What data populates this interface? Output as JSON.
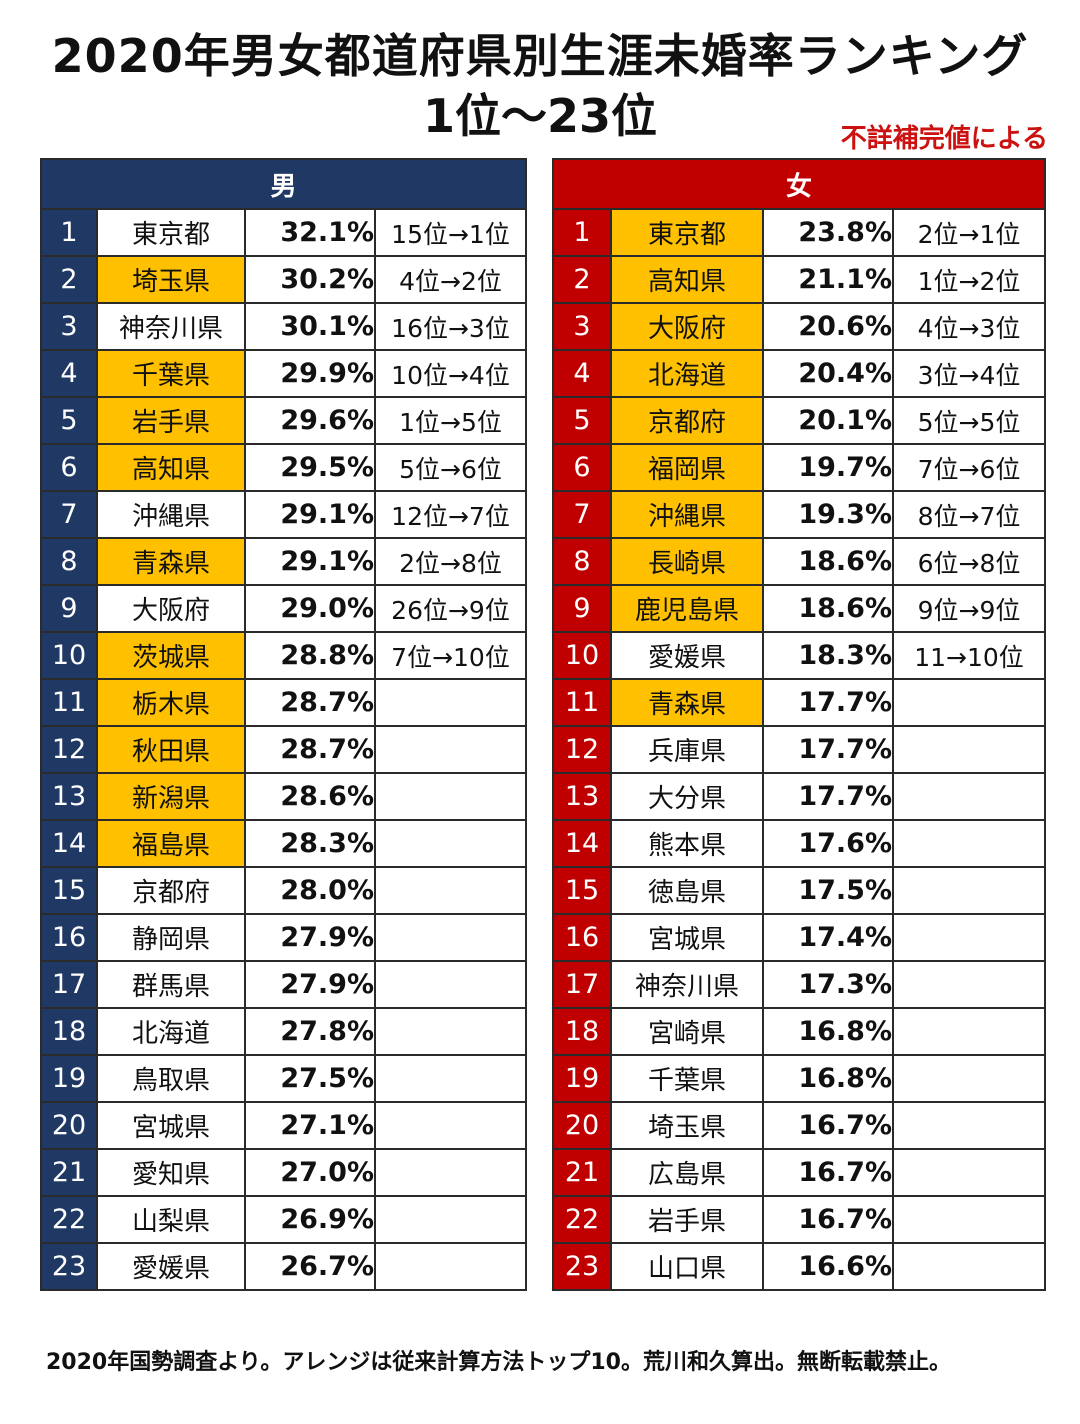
{
  "title_line1": "2020年男女都道府県別生涯未婚率ランキング",
  "title_line2": "1位〜23位",
  "note": "不詳補完値による",
  "footer": "2020年国勢調査より。アレンジは従来計算方法トップ10。荒川和久算出。無断転載禁止。",
  "colors": {
    "male_header": "#1f3864",
    "female_header": "#c00000",
    "highlight": "#ffc000",
    "note": "#cc1111"
  },
  "chart_data": [
    {
      "type": "table",
      "header": "男",
      "rows": [
        {
          "rank": "1",
          "prefecture": "東京都",
          "rate": "32.1%",
          "change": "15位→1位",
          "highlight": false
        },
        {
          "rank": "2",
          "prefecture": "埼玉県",
          "rate": "30.2%",
          "change": "4位→2位",
          "highlight": true
        },
        {
          "rank": "3",
          "prefecture": "神奈川県",
          "rate": "30.1%",
          "change": "16位→3位",
          "highlight": false
        },
        {
          "rank": "4",
          "prefecture": "千葉県",
          "rate": "29.9%",
          "change": "10位→4位",
          "highlight": true
        },
        {
          "rank": "5",
          "prefecture": "岩手県",
          "rate": "29.6%",
          "change": "1位→5位",
          "highlight": true
        },
        {
          "rank": "6",
          "prefecture": "高知県",
          "rate": "29.5%",
          "change": "5位→6位",
          "highlight": true
        },
        {
          "rank": "7",
          "prefecture": "沖縄県",
          "rate": "29.1%",
          "change": "12位→7位",
          "highlight": false
        },
        {
          "rank": "8",
          "prefecture": "青森県",
          "rate": "29.1%",
          "change": "2位→8位",
          "highlight": true
        },
        {
          "rank": "9",
          "prefecture": "大阪府",
          "rate": "29.0%",
          "change": "26位→9位",
          "highlight": false
        },
        {
          "rank": "10",
          "prefecture": "茨城県",
          "rate": "28.8%",
          "change": "7位→10位",
          "highlight": true
        },
        {
          "rank": "11",
          "prefecture": "栃木県",
          "rate": "28.7%",
          "change": "",
          "highlight": true
        },
        {
          "rank": "12",
          "prefecture": "秋田県",
          "rate": "28.7%",
          "change": "",
          "highlight": true
        },
        {
          "rank": "13",
          "prefecture": "新潟県",
          "rate": "28.6%",
          "change": "",
          "highlight": true
        },
        {
          "rank": "14",
          "prefecture": "福島県",
          "rate": "28.3%",
          "change": "",
          "highlight": true
        },
        {
          "rank": "15",
          "prefecture": "京都府",
          "rate": "28.0%",
          "change": "",
          "highlight": false
        },
        {
          "rank": "16",
          "prefecture": "静岡県",
          "rate": "27.9%",
          "change": "",
          "highlight": false
        },
        {
          "rank": "17",
          "prefecture": "群馬県",
          "rate": "27.9%",
          "change": "",
          "highlight": false
        },
        {
          "rank": "18",
          "prefecture": "北海道",
          "rate": "27.8%",
          "change": "",
          "highlight": false
        },
        {
          "rank": "19",
          "prefecture": "鳥取県",
          "rate": "27.5%",
          "change": "",
          "highlight": false
        },
        {
          "rank": "20",
          "prefecture": "宮城県",
          "rate": "27.1%",
          "change": "",
          "highlight": false
        },
        {
          "rank": "21",
          "prefecture": "愛知県",
          "rate": "27.0%",
          "change": "",
          "highlight": false
        },
        {
          "rank": "22",
          "prefecture": "山梨県",
          "rate": "26.9%",
          "change": "",
          "highlight": false
        },
        {
          "rank": "23",
          "prefecture": "愛媛県",
          "rate": "26.7%",
          "change": "",
          "highlight": false
        }
      ]
    },
    {
      "type": "table",
      "header": "女",
      "rows": [
        {
          "rank": "1",
          "prefecture": "東京都",
          "rate": "23.8%",
          "change": "2位→1位",
          "highlight": true
        },
        {
          "rank": "2",
          "prefecture": "高知県",
          "rate": "21.1%",
          "change": "1位→2位",
          "highlight": true
        },
        {
          "rank": "3",
          "prefecture": "大阪府",
          "rate": "20.6%",
          "change": "4位→3位",
          "highlight": true
        },
        {
          "rank": "4",
          "prefecture": "北海道",
          "rate": "20.4%",
          "change": "3位→4位",
          "highlight": true
        },
        {
          "rank": "5",
          "prefecture": "京都府",
          "rate": "20.1%",
          "change": "5位→5位",
          "highlight": true
        },
        {
          "rank": "6",
          "prefecture": "福岡県",
          "rate": "19.7%",
          "change": "7位→6位",
          "highlight": true
        },
        {
          "rank": "7",
          "prefecture": "沖縄県",
          "rate": "19.3%",
          "change": "8位→7位",
          "highlight": true
        },
        {
          "rank": "8",
          "prefecture": "長崎県",
          "rate": "18.6%",
          "change": "6位→8位",
          "highlight": true
        },
        {
          "rank": "9",
          "prefecture": "鹿児島県",
          "rate": "18.6%",
          "change": "9位→9位",
          "highlight": true
        },
        {
          "rank": "10",
          "prefecture": "愛媛県",
          "rate": "18.3%",
          "change": "11→10位",
          "highlight": false
        },
        {
          "rank": "11",
          "prefecture": "青森県",
          "rate": "17.7%",
          "change": "",
          "highlight": true
        },
        {
          "rank": "12",
          "prefecture": "兵庫県",
          "rate": "17.7%",
          "change": "",
          "highlight": false
        },
        {
          "rank": "13",
          "prefecture": "大分県",
          "rate": "17.7%",
          "change": "",
          "highlight": false
        },
        {
          "rank": "14",
          "prefecture": "熊本県",
          "rate": "17.6%",
          "change": "",
          "highlight": false
        },
        {
          "rank": "15",
          "prefecture": "徳島県",
          "rate": "17.5%",
          "change": "",
          "highlight": false
        },
        {
          "rank": "16",
          "prefecture": "宮城県",
          "rate": "17.4%",
          "change": "",
          "highlight": false
        },
        {
          "rank": "17",
          "prefecture": "神奈川県",
          "rate": "17.3%",
          "change": "",
          "highlight": false
        },
        {
          "rank": "18",
          "prefecture": "宮崎県",
          "rate": "16.8%",
          "change": "",
          "highlight": false
        },
        {
          "rank": "19",
          "prefecture": "千葉県",
          "rate": "16.8%",
          "change": "",
          "highlight": false
        },
        {
          "rank": "20",
          "prefecture": "埼玉県",
          "rate": "16.7%",
          "change": "",
          "highlight": false
        },
        {
          "rank": "21",
          "prefecture": "広島県",
          "rate": "16.7%",
          "change": "",
          "highlight": false
        },
        {
          "rank": "22",
          "prefecture": "岩手県",
          "rate": "16.7%",
          "change": "",
          "highlight": false
        },
        {
          "rank": "23",
          "prefecture": "山口県",
          "rate": "16.6%",
          "change": "",
          "highlight": false
        }
      ]
    }
  ]
}
